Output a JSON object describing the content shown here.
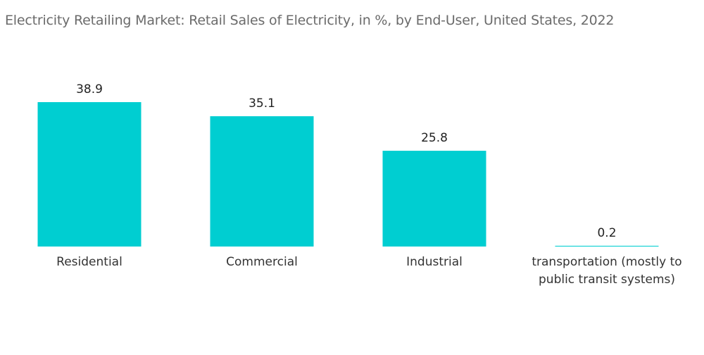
{
  "chart_data": {
    "type": "bar",
    "title": "Electricity Retailing Market: Retail Sales of Electricity, in %, by End-User, United States, 2022",
    "categories": [
      [
        "Residential"
      ],
      [
        "Commercial"
      ],
      [
        "Industrial"
      ],
      [
        "transportation (mostly to",
        "public transit systems)"
      ]
    ],
    "values": [
      38.9,
      35.1,
      25.8,
      0.2
    ],
    "value_labels": [
      "38.9",
      "35.1",
      "25.8",
      "0.2"
    ],
    "xlabel": "",
    "ylabel": "",
    "ylim": [
      0,
      38.9
    ],
    "grid": false,
    "legend": "none",
    "bar_color": "#00ced1"
  }
}
